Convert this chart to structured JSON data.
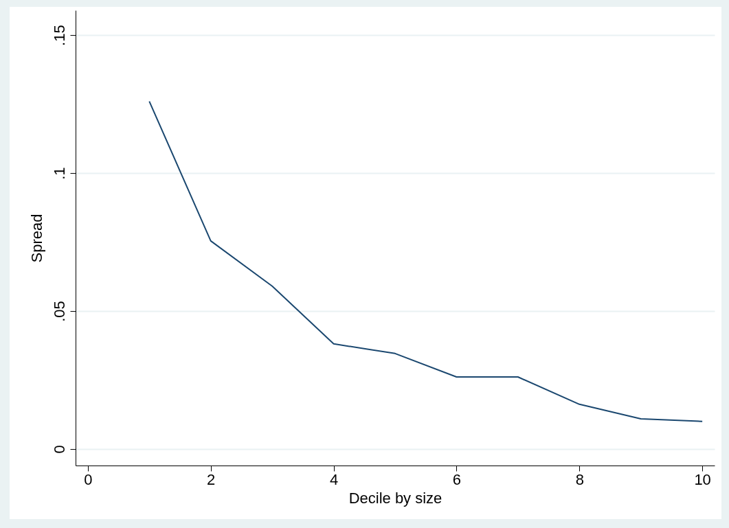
{
  "chart_data": {
    "type": "line",
    "xlabel": "Decile by size",
    "ylabel": "Spread",
    "x": [
      1,
      2,
      3,
      4,
      5,
      6,
      7,
      8,
      9,
      10
    ],
    "series": [
      {
        "color": "#1a476f",
        "values": [
          0.126,
          0.0754,
          0.059,
          0.0381,
          0.0346,
          0.0261,
          0.0261,
          0.0162,
          0.0109,
          0.01
        ]
      }
    ],
    "xlim": [
      -0.2,
      10.2
    ],
    "ylim": [
      -0.006,
      0.159
    ],
    "xticks": [
      0,
      2,
      4,
      6,
      8,
      10
    ],
    "yticks": [
      {
        "value": 0,
        "label": "0"
      },
      {
        "value": 0.05,
        "label": ".05"
      },
      {
        "value": 0.1,
        "label": ".1"
      },
      {
        "value": 0.15,
        "label": ".15"
      }
    ],
    "grid": "y",
    "marker": "none",
    "line_style": "solid"
  }
}
